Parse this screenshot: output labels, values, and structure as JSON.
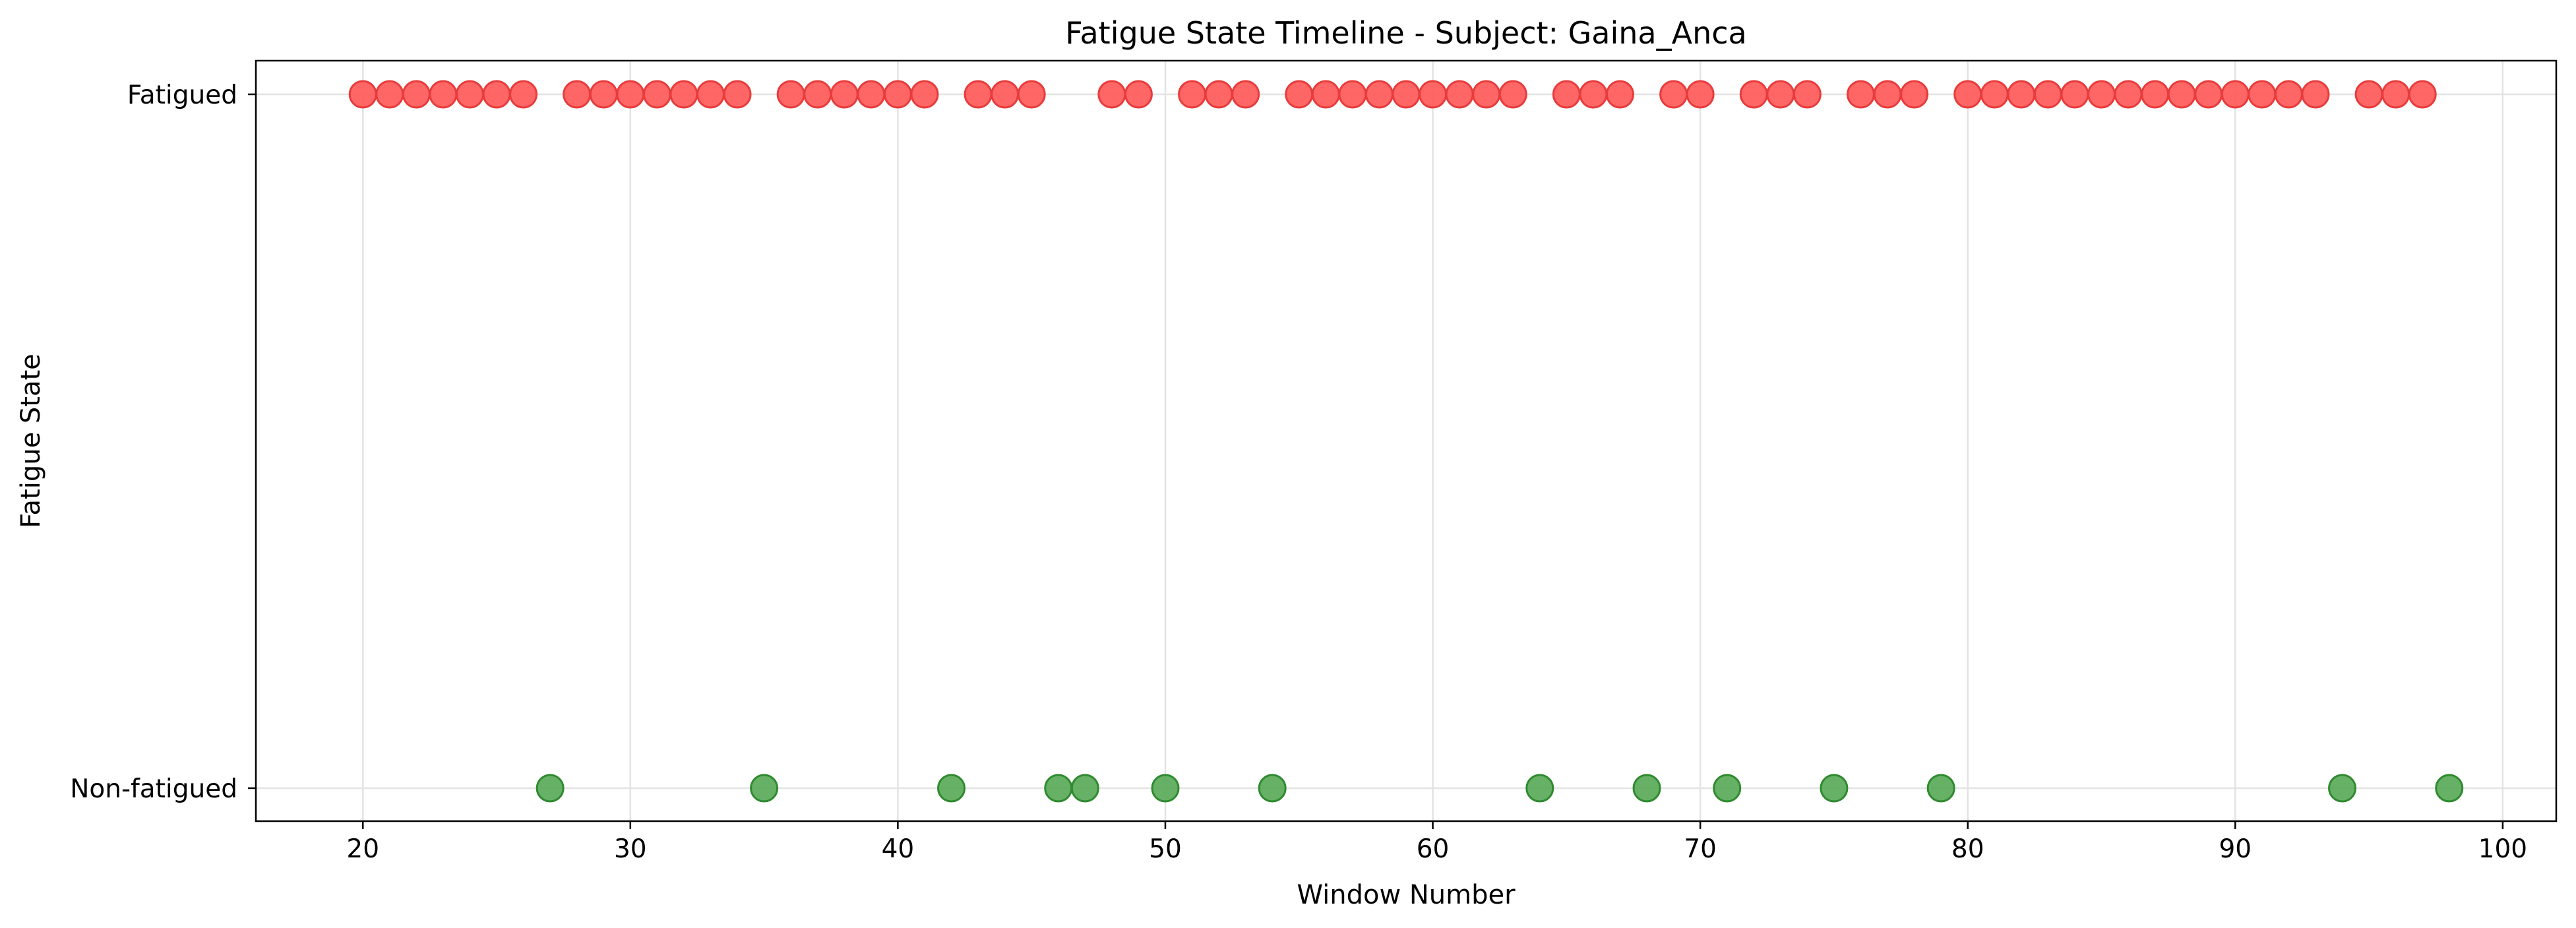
{
  "chart_data": {
    "type": "scatter",
    "title": "Fatigue State Timeline - Subject: Gaina_Anca",
    "xlabel": "Window Number",
    "ylabel": "Fatigue State",
    "xlim": [
      16,
      102
    ],
    "x_ticks": [
      20,
      30,
      40,
      50,
      60,
      70,
      80,
      90,
      100
    ],
    "y_categories": [
      "Non-fatigued",
      "Fatigued"
    ],
    "grid": true,
    "series": [
      {
        "state": "Fatigued",
        "color": "#ff5555",
        "edge_color": "#e83b3b",
        "x": [
          20,
          21,
          22,
          23,
          24,
          25,
          26,
          28,
          29,
          30,
          31,
          32,
          33,
          34,
          36,
          37,
          38,
          39,
          40,
          41,
          43,
          44,
          45,
          48,
          49,
          51,
          52,
          53,
          55,
          56,
          57,
          58,
          59,
          60,
          61,
          62,
          63,
          65,
          66,
          67,
          69,
          70,
          72,
          73,
          74,
          76,
          77,
          78,
          80,
          81,
          82,
          83,
          84,
          85,
          86,
          87,
          88,
          89,
          90,
          91,
          92,
          93,
          95,
          96,
          97
        ]
      },
      {
        "state": "Non-fatigued",
        "color": "#55a855",
        "edge_color": "#2f8a2f",
        "x": [
          27,
          35,
          42,
          46,
          47,
          50,
          54,
          64,
          68,
          71,
          75,
          79,
          94,
          98
        ]
      }
    ]
  }
}
